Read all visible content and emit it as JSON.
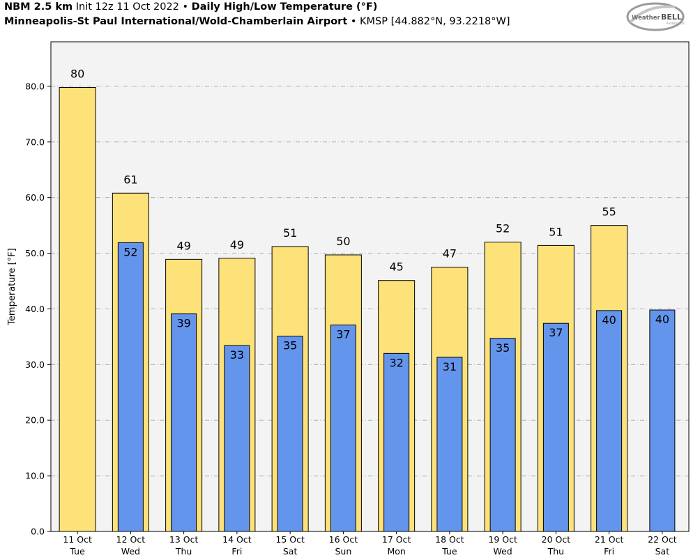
{
  "header": {
    "model": "NBM 2.5 km",
    "init": "Init 12z 11 Oct 2022",
    "sep1": "•",
    "product": "Daily High/Low Temperature (°F)",
    "location": "Minneapolis-St Paul International/Wold-Chamberlain Airport",
    "sep2": "•",
    "station": "KMSP [44.882°N, 93.2218°W]"
  },
  "logo": {
    "text_left": "Weather",
    "text_right": "BELL",
    "subtext": "Analytics LLC"
  },
  "colors": {
    "high": "#fde27a",
    "low": "#6495ed",
    "plot_bg": "#f3f3f3",
    "grid": "#b0b0b0"
  },
  "chart_data": {
    "type": "bar",
    "ylabel": "Temperature [°F]",
    "ylim": [
      0,
      88
    ],
    "yticks": [
      0,
      10,
      20,
      30,
      40,
      50,
      60,
      70,
      80
    ],
    "ytick_labels": [
      "0.0",
      "10.0",
      "20.0",
      "30.0",
      "40.0",
      "50.0",
      "60.0",
      "70.0",
      "80.0"
    ],
    "grid": true,
    "categories": [
      [
        "11 Oct",
        "Tue"
      ],
      [
        "12 Oct",
        "Wed"
      ],
      [
        "13 Oct",
        "Thu"
      ],
      [
        "14 Oct",
        "Fri"
      ],
      [
        "15 Oct",
        "Sat"
      ],
      [
        "16 Oct",
        "Sun"
      ],
      [
        "17 Oct",
        "Mon"
      ],
      [
        "18 Oct",
        "Tue"
      ],
      [
        "19 Oct",
        "Wed"
      ],
      [
        "20 Oct",
        "Thu"
      ],
      [
        "21 Oct",
        "Fri"
      ],
      [
        "22 Oct",
        "Sat"
      ]
    ],
    "series": [
      {
        "key": "high",
        "values": [
          79.8,
          60.8,
          48.9,
          49.1,
          51.2,
          49.7,
          45.1,
          47.5,
          52.0,
          51.4,
          55.0,
          null
        ],
        "labels": [
          "80",
          "61",
          "49",
          "49",
          "51",
          "50",
          "45",
          "47",
          "52",
          "51",
          "55",
          ""
        ]
      },
      {
        "key": "low",
        "values": [
          null,
          51.9,
          39.1,
          33.4,
          35.1,
          37.1,
          32.0,
          31.3,
          34.7,
          37.4,
          39.7,
          39.8
        ],
        "labels": [
          "",
          "52",
          "39",
          "33",
          "35",
          "37",
          "32",
          "31",
          "35",
          "37",
          "40",
          "40"
        ]
      }
    ]
  }
}
